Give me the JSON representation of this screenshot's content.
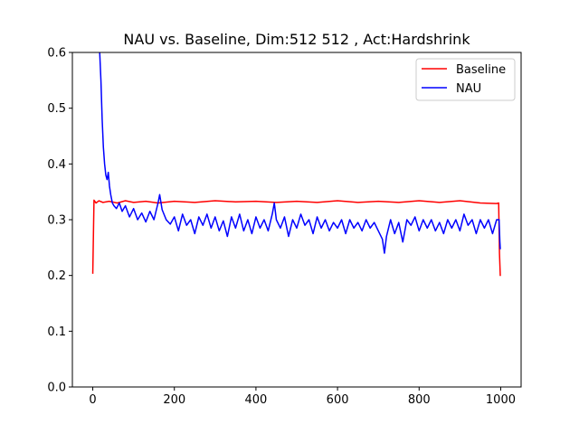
{
  "chart_data": {
    "type": "line",
    "title": "NAU vs. Baseline, Dim:512 512 , Act:Hardshrink",
    "xlabel": "",
    "ylabel": "",
    "xlim": [
      -50,
      1050
    ],
    "ylim": [
      0.0,
      0.6
    ],
    "x_ticks": [
      0,
      200,
      400,
      600,
      800,
      1000
    ],
    "y_ticks": [
      0.0,
      0.1,
      0.2,
      0.3,
      0.4,
      0.5,
      0.6
    ],
    "x_tick_labels": [
      "0",
      "200",
      "400",
      "600",
      "800",
      "1000"
    ],
    "y_tick_labels": [
      "0.0",
      "0.1",
      "0.2",
      "0.3",
      "0.4",
      "0.5",
      "0.6"
    ],
    "grid": false,
    "legend_position": "top-right",
    "series": [
      {
        "name": "Baseline",
        "color": "#ff0000",
        "points": [
          [
            0,
            0.203
          ],
          [
            3,
            0.335
          ],
          [
            8,
            0.33
          ],
          [
            15,
            0.334
          ],
          [
            25,
            0.331
          ],
          [
            40,
            0.333
          ],
          [
            60,
            0.33
          ],
          [
            80,
            0.334
          ],
          [
            100,
            0.331
          ],
          [
            130,
            0.333
          ],
          [
            160,
            0.33
          ],
          [
            200,
            0.333
          ],
          [
            250,
            0.331
          ],
          [
            300,
            0.334
          ],
          [
            350,
            0.332
          ],
          [
            400,
            0.333
          ],
          [
            450,
            0.331
          ],
          [
            500,
            0.333
          ],
          [
            550,
            0.331
          ],
          [
            600,
            0.334
          ],
          [
            650,
            0.331
          ],
          [
            700,
            0.333
          ],
          [
            750,
            0.331
          ],
          [
            800,
            0.334
          ],
          [
            850,
            0.331
          ],
          [
            900,
            0.334
          ],
          [
            950,
            0.33
          ],
          [
            990,
            0.329
          ],
          [
            995,
            0.33
          ],
          [
            997,
            0.24
          ],
          [
            999,
            0.199
          ]
        ]
      },
      {
        "name": "NAU",
        "color": "#0000ff",
        "points": [
          [
            17,
            0.6
          ],
          [
            20,
            0.55
          ],
          [
            23,
            0.48
          ],
          [
            26,
            0.43
          ],
          [
            29,
            0.4
          ],
          [
            32,
            0.38
          ],
          [
            35,
            0.372
          ],
          [
            38,
            0.385
          ],
          [
            41,
            0.36
          ],
          [
            44,
            0.345
          ],
          [
            48,
            0.33
          ],
          [
            52,
            0.325
          ],
          [
            58,
            0.32
          ],
          [
            65,
            0.33
          ],
          [
            72,
            0.315
          ],
          [
            80,
            0.325
          ],
          [
            90,
            0.305
          ],
          [
            100,
            0.32
          ],
          [
            110,
            0.3
          ],
          [
            120,
            0.312
          ],
          [
            130,
            0.296
          ],
          [
            140,
            0.315
          ],
          [
            150,
            0.3
          ],
          [
            160,
            0.33
          ],
          [
            164,
            0.345
          ],
          [
            170,
            0.318
          ],
          [
            180,
            0.3
          ],
          [
            190,
            0.292
          ],
          [
            200,
            0.305
          ],
          [
            210,
            0.28
          ],
          [
            220,
            0.31
          ],
          [
            230,
            0.29
          ],
          [
            240,
            0.3
          ],
          [
            250,
            0.275
          ],
          [
            260,
            0.305
          ],
          [
            270,
            0.29
          ],
          [
            280,
            0.31
          ],
          [
            290,
            0.285
          ],
          [
            300,
            0.305
          ],
          [
            310,
            0.28
          ],
          [
            320,
            0.298
          ],
          [
            330,
            0.27
          ],
          [
            340,
            0.305
          ],
          [
            350,
            0.285
          ],
          [
            360,
            0.31
          ],
          [
            370,
            0.28
          ],
          [
            380,
            0.3
          ],
          [
            390,
            0.275
          ],
          [
            400,
            0.305
          ],
          [
            410,
            0.285
          ],
          [
            420,
            0.3
          ],
          [
            430,
            0.28
          ],
          [
            440,
            0.31
          ],
          [
            445,
            0.33
          ],
          [
            450,
            0.3
          ],
          [
            460,
            0.285
          ],
          [
            470,
            0.305
          ],
          [
            480,
            0.27
          ],
          [
            490,
            0.3
          ],
          [
            500,
            0.285
          ],
          [
            510,
            0.31
          ],
          [
            520,
            0.29
          ],
          [
            530,
            0.3
          ],
          [
            540,
            0.275
          ],
          [
            550,
            0.305
          ],
          [
            560,
            0.285
          ],
          [
            570,
            0.3
          ],
          [
            580,
            0.28
          ],
          [
            590,
            0.295
          ],
          [
            600,
            0.285
          ],
          [
            610,
            0.3
          ],
          [
            620,
            0.275
          ],
          [
            630,
            0.3
          ],
          [
            640,
            0.285
          ],
          [
            650,
            0.295
          ],
          [
            660,
            0.28
          ],
          [
            670,
            0.3
          ],
          [
            680,
            0.285
          ],
          [
            690,
            0.295
          ],
          [
            700,
            0.28
          ],
          [
            710,
            0.265
          ],
          [
            715,
            0.24
          ],
          [
            720,
            0.27
          ],
          [
            730,
            0.3
          ],
          [
            740,
            0.275
          ],
          [
            750,
            0.295
          ],
          [
            760,
            0.26
          ],
          [
            770,
            0.3
          ],
          [
            780,
            0.29
          ],
          [
            790,
            0.305
          ],
          [
            800,
            0.28
          ],
          [
            810,
            0.3
          ],
          [
            820,
            0.285
          ],
          [
            830,
            0.3
          ],
          [
            840,
            0.28
          ],
          [
            850,
            0.295
          ],
          [
            860,
            0.275
          ],
          [
            870,
            0.3
          ],
          [
            880,
            0.285
          ],
          [
            890,
            0.3
          ],
          [
            900,
            0.28
          ],
          [
            910,
            0.31
          ],
          [
            920,
            0.29
          ],
          [
            930,
            0.3
          ],
          [
            940,
            0.275
          ],
          [
            950,
            0.3
          ],
          [
            960,
            0.285
          ],
          [
            970,
            0.3
          ],
          [
            980,
            0.275
          ],
          [
            990,
            0.3
          ],
          [
            996,
            0.3
          ],
          [
            998,
            0.26
          ],
          [
            999,
            0.247
          ]
        ]
      }
    ]
  }
}
